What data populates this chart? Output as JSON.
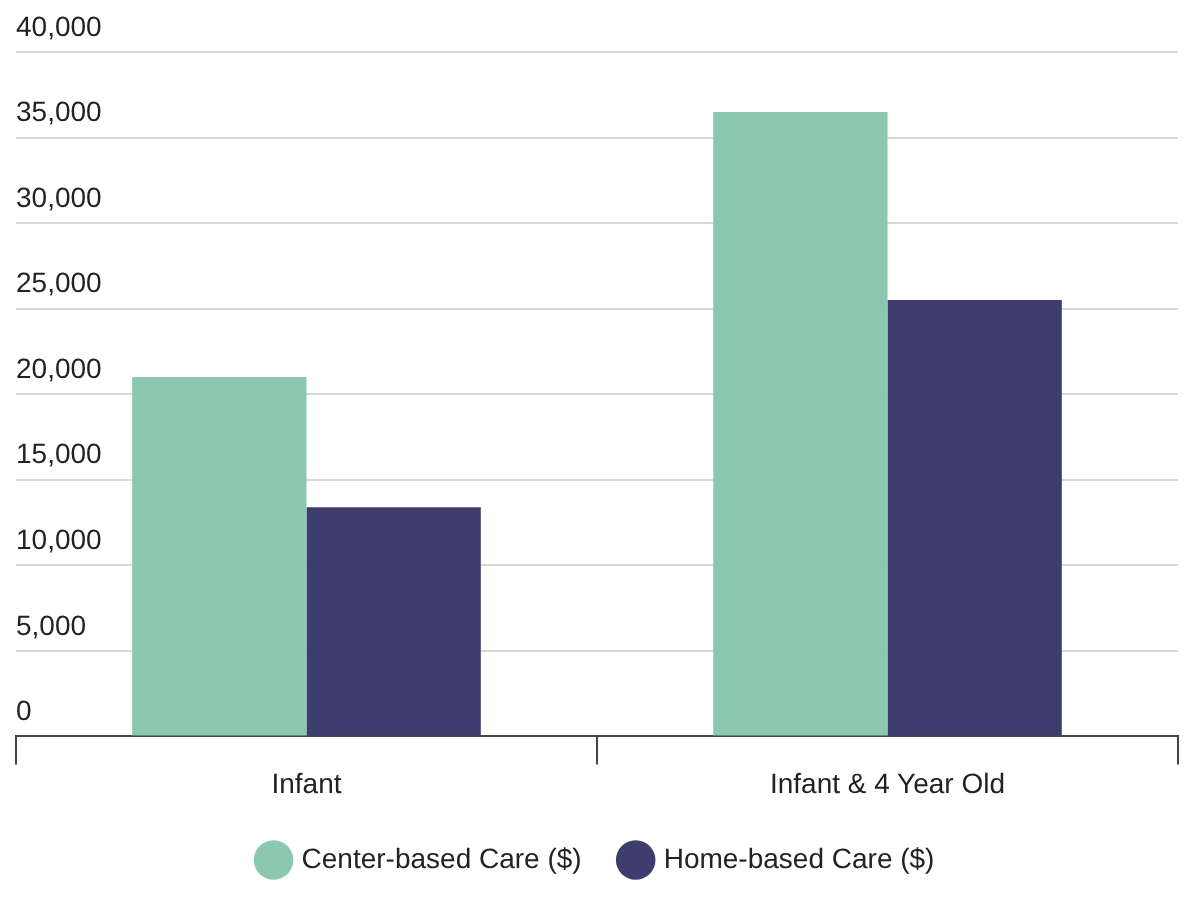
{
  "chart_data": {
    "type": "bar",
    "categories": [
      "Infant",
      "Infant & 4 Year Old"
    ],
    "series": [
      {
        "name": "Center-based Care ($)",
        "color": "#8cc8b0",
        "values": [
          21000,
          36500
        ]
      },
      {
        "name": "Home-based Care ($)",
        "color": "#3d3d6e",
        "values": [
          13400,
          25500
        ]
      }
    ],
    "ylim": [
      0,
      40000
    ],
    "yticks": [
      {
        "value": 0,
        "label": "0"
      },
      {
        "value": 5000,
        "label": "5,000"
      },
      {
        "value": 10000,
        "label": "10,000"
      },
      {
        "value": 15000,
        "label": "15,000"
      },
      {
        "value": 20000,
        "label": "20,000"
      },
      {
        "value": 25000,
        "label": "25,000"
      },
      {
        "value": 30000,
        "label": "30,000"
      },
      {
        "value": 35000,
        "label": "35,000"
      },
      {
        "value": 40000,
        "label": "40,000"
      }
    ],
    "grid": "y",
    "legend": "bottom"
  }
}
